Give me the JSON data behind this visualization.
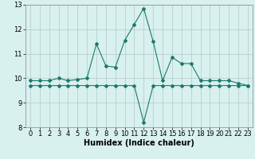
{
  "x": [
    0,
    1,
    2,
    3,
    4,
    5,
    6,
    7,
    8,
    9,
    10,
    11,
    12,
    13,
    14,
    15,
    16,
    17,
    18,
    19,
    20,
    21,
    22,
    23
  ],
  "y_line1": [
    9.9,
    9.9,
    9.9,
    10.0,
    9.9,
    9.95,
    10.0,
    11.4,
    10.5,
    10.45,
    11.55,
    12.2,
    12.85,
    11.5,
    9.9,
    10.85,
    10.6,
    10.6,
    9.9,
    9.9,
    9.9,
    9.9,
    9.8,
    9.7
  ],
  "y_line2": [
    9.7,
    9.7,
    9.7,
    9.7,
    9.7,
    9.7,
    9.7,
    9.7,
    9.7,
    9.7,
    9.7,
    9.7,
    8.2,
    9.7,
    9.7,
    9.7,
    9.7,
    9.7,
    9.7,
    9.7,
    9.7,
    9.7,
    9.7,
    9.7
  ],
  "line1_color": "#1a7a6e",
  "line2_color": "#1a7a6e",
  "bg_color": "#d8f0ee",
  "grid_color": "#b0c8c8",
  "xlabel": "Humidex (Indice chaleur)",
  "ylim": [
    8.0,
    13.0
  ],
  "xlim_min": -0.5,
  "xlim_max": 23.5,
  "yticks": [
    8,
    9,
    10,
    11,
    12,
    13
  ],
  "xticks": [
    0,
    1,
    2,
    3,
    4,
    5,
    6,
    7,
    8,
    9,
    10,
    11,
    12,
    13,
    14,
    15,
    16,
    17,
    18,
    19,
    20,
    21,
    22,
    23
  ],
  "xlabel_fontsize": 7,
  "tick_fontsize": 6,
  "marker": "D",
  "marker_size": 2,
  "line_width": 0.8
}
